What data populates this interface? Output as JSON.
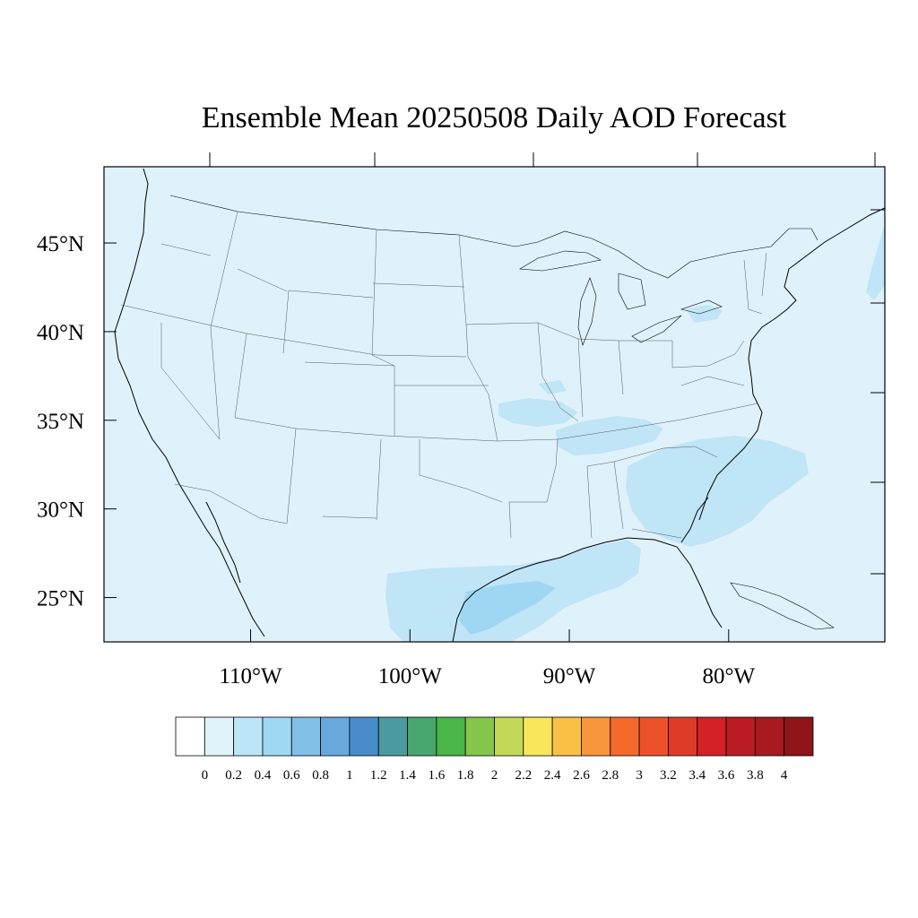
{
  "title": "Ensemble Mean 20250508 Daily AOD Forecast",
  "map": {
    "lat_range": [
      22.5,
      49.3
    ],
    "lon_range": [
      -119.2,
      -70.2
    ],
    "lon_ticks": [
      {
        "value": -110,
        "label": "110°W"
      },
      {
        "value": -100,
        "label": "100°W"
      },
      {
        "value": -90,
        "label": "90°W"
      },
      {
        "value": -80,
        "label": "80°W"
      }
    ],
    "lat_ticks": [
      {
        "value": 25,
        "label": "25°N"
      },
      {
        "value": 30,
        "label": "30°N"
      },
      {
        "value": 35,
        "label": "35°N"
      },
      {
        "value": 40,
        "label": "40°N"
      },
      {
        "value": 45,
        "label": "45°N"
      }
    ],
    "background_fill": "#dff2fb",
    "field_bin_0_2_to_0_4": "#bfe5f7",
    "field_bin_0_4_to_0_6": "#9fd6f3",
    "outline_color": "#000000"
  },
  "colorbar": {
    "labels": [
      "0",
      "0.2",
      "0.4",
      "0.6",
      "0.8",
      "1",
      "1.2",
      "1.4",
      "1.6",
      "1.8",
      "2",
      "2.2",
      "2.4",
      "2.6",
      "2.8",
      "3",
      "3.2",
      "3.4",
      "3.6",
      "3.8",
      "4"
    ],
    "colors": [
      "#ffffff",
      "#e0f3fb",
      "#bde5f8",
      "#9dd8f4",
      "#82bfe6",
      "#68a8dd",
      "#4a8ccb",
      "#4b9a9f",
      "#48a66f",
      "#4ab549",
      "#86c54b",
      "#c4d858",
      "#f8e75a",
      "#f8c146",
      "#f7963c",
      "#f4692c",
      "#ed512a",
      "#e03b28",
      "#d42027",
      "#bb1b23",
      "#a61a20",
      "#8e1519"
    ]
  }
}
